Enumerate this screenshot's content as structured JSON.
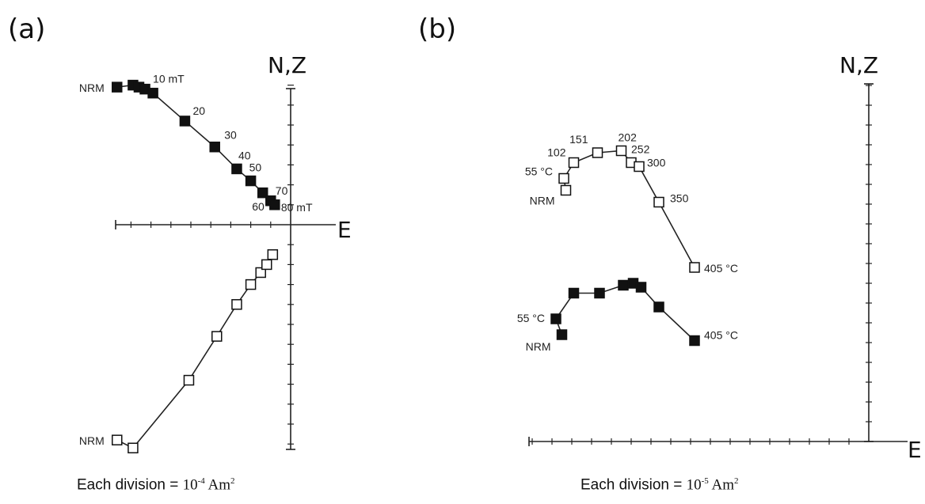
{
  "chart_data": [
    {
      "type": "scatter",
      "panel_label": "(a)",
      "vertical_axis_label": "N,Z",
      "horizontal_axis_label": "E",
      "division_caption": {
        "prefix": "Each division = ",
        "base": "10",
        "exponent": "-4",
        "unit": " Am",
        "unit_exponent": "2"
      },
      "horizontal_series": {
        "style": "filled",
        "points": [
          [
            -8.7,
            6.9
          ],
          [
            -7.9,
            7.0
          ],
          [
            -7.6,
            6.9
          ],
          [
            -7.3,
            6.8
          ],
          [
            -6.9,
            6.6
          ],
          [
            -5.3,
            5.2
          ],
          [
            -3.8,
            3.9
          ],
          [
            -2.7,
            2.8
          ],
          [
            -2.0,
            2.2
          ],
          [
            -1.4,
            1.6
          ],
          [
            -1.0,
            1.2
          ],
          [
            -0.8,
            1.0
          ]
        ]
      },
      "vertical_series": {
        "style": "open",
        "points": [
          [
            -8.7,
            -10.8
          ],
          [
            -7.9,
            -11.2
          ],
          [
            -5.1,
            -7.8
          ],
          [
            -3.7,
            -5.6
          ],
          [
            -2.7,
            -4.0
          ],
          [
            -2.0,
            -3.0
          ],
          [
            -1.5,
            -2.4
          ],
          [
            -1.2,
            -2.0
          ],
          [
            -0.9,
            -1.5
          ]
        ]
      },
      "annotations": [
        {
          "text": "NRM",
          "point": "horizontal_series.0",
          "anchor": "end"
        },
        {
          "text": "10 mT",
          "point": "horizontal_series.3",
          "anchor": "start"
        },
        {
          "text": "20",
          "point": "horizontal_series.5",
          "anchor": "start"
        },
        {
          "text": "30",
          "point": "horizontal_series.6",
          "anchor": "start"
        },
        {
          "text": "40",
          "point": "horizontal_series.7",
          "anchor": "start"
        },
        {
          "text": "50",
          "point": "horizontal_series.8",
          "anchor": "start"
        },
        {
          "text": "70",
          "point": "horizontal_series.10",
          "anchor": "start"
        },
        {
          "text": "60",
          "point": "horizontal_series.10",
          "anchor": "end"
        },
        {
          "text": "80 mT",
          "point": "horizontal_series.11",
          "anchor": "start"
        },
        {
          "text": "NRM",
          "point": "vertical_series.0",
          "anchor": "end"
        }
      ]
    },
    {
      "type": "scatter",
      "panel_label": "(b)",
      "vertical_axis_label": "N,Z",
      "horizontal_axis_label": "E",
      "division_caption": {
        "prefix": "Each division = ",
        "base": "10",
        "exponent": "-5",
        "unit": " Am",
        "unit_exponent": "2"
      },
      "vertical_series": {
        "style": "open",
        "points": [
          [
            -15.3,
            12.7
          ],
          [
            -15.4,
            13.3
          ],
          [
            -14.9,
            14.1
          ],
          [
            -13.7,
            14.6
          ],
          [
            -12.5,
            14.7
          ],
          [
            -12.0,
            14.1
          ],
          [
            -11.6,
            13.9
          ],
          [
            -10.6,
            12.1
          ],
          [
            -8.8,
            8.8
          ]
        ]
      },
      "horizontal_series": {
        "style": "filled",
        "points": [
          [
            -15.5,
            5.4
          ],
          [
            -15.8,
            6.2
          ],
          [
            -14.9,
            7.5
          ],
          [
            -13.6,
            7.5
          ],
          [
            -12.4,
            7.9
          ],
          [
            -11.9,
            8.0
          ],
          [
            -11.5,
            7.8
          ],
          [
            -10.6,
            6.8
          ],
          [
            -8.8,
            5.1
          ]
        ]
      },
      "annotations": [
        {
          "text": "NRM",
          "point": "vertical_series.0",
          "anchor": "end"
        },
        {
          "text": "55 °C",
          "point": "vertical_series.1",
          "anchor": "end"
        },
        {
          "text": "102",
          "point": "vertical_series.2",
          "anchor": "end"
        },
        {
          "text": "151",
          "point": "vertical_series.3",
          "anchor": "end"
        },
        {
          "text": "202",
          "point": "vertical_series.4",
          "anchor": "start"
        },
        {
          "text": "252",
          "point": "vertical_series.5",
          "anchor": "start"
        },
        {
          "text": "300",
          "point": "vertical_series.6",
          "anchor": "start"
        },
        {
          "text": "350",
          "point": "vertical_series.7",
          "anchor": "start"
        },
        {
          "text": "405 °C",
          "point": "vertical_series.8",
          "anchor": "start"
        },
        {
          "text": "55 °C",
          "point": "horizontal_series.1",
          "anchor": "end"
        },
        {
          "text": "NRM",
          "point": "horizontal_series.0",
          "anchor": "end"
        },
        {
          "text": "405 °C",
          "point": "horizontal_series.8",
          "anchor": "start"
        }
      ]
    }
  ]
}
